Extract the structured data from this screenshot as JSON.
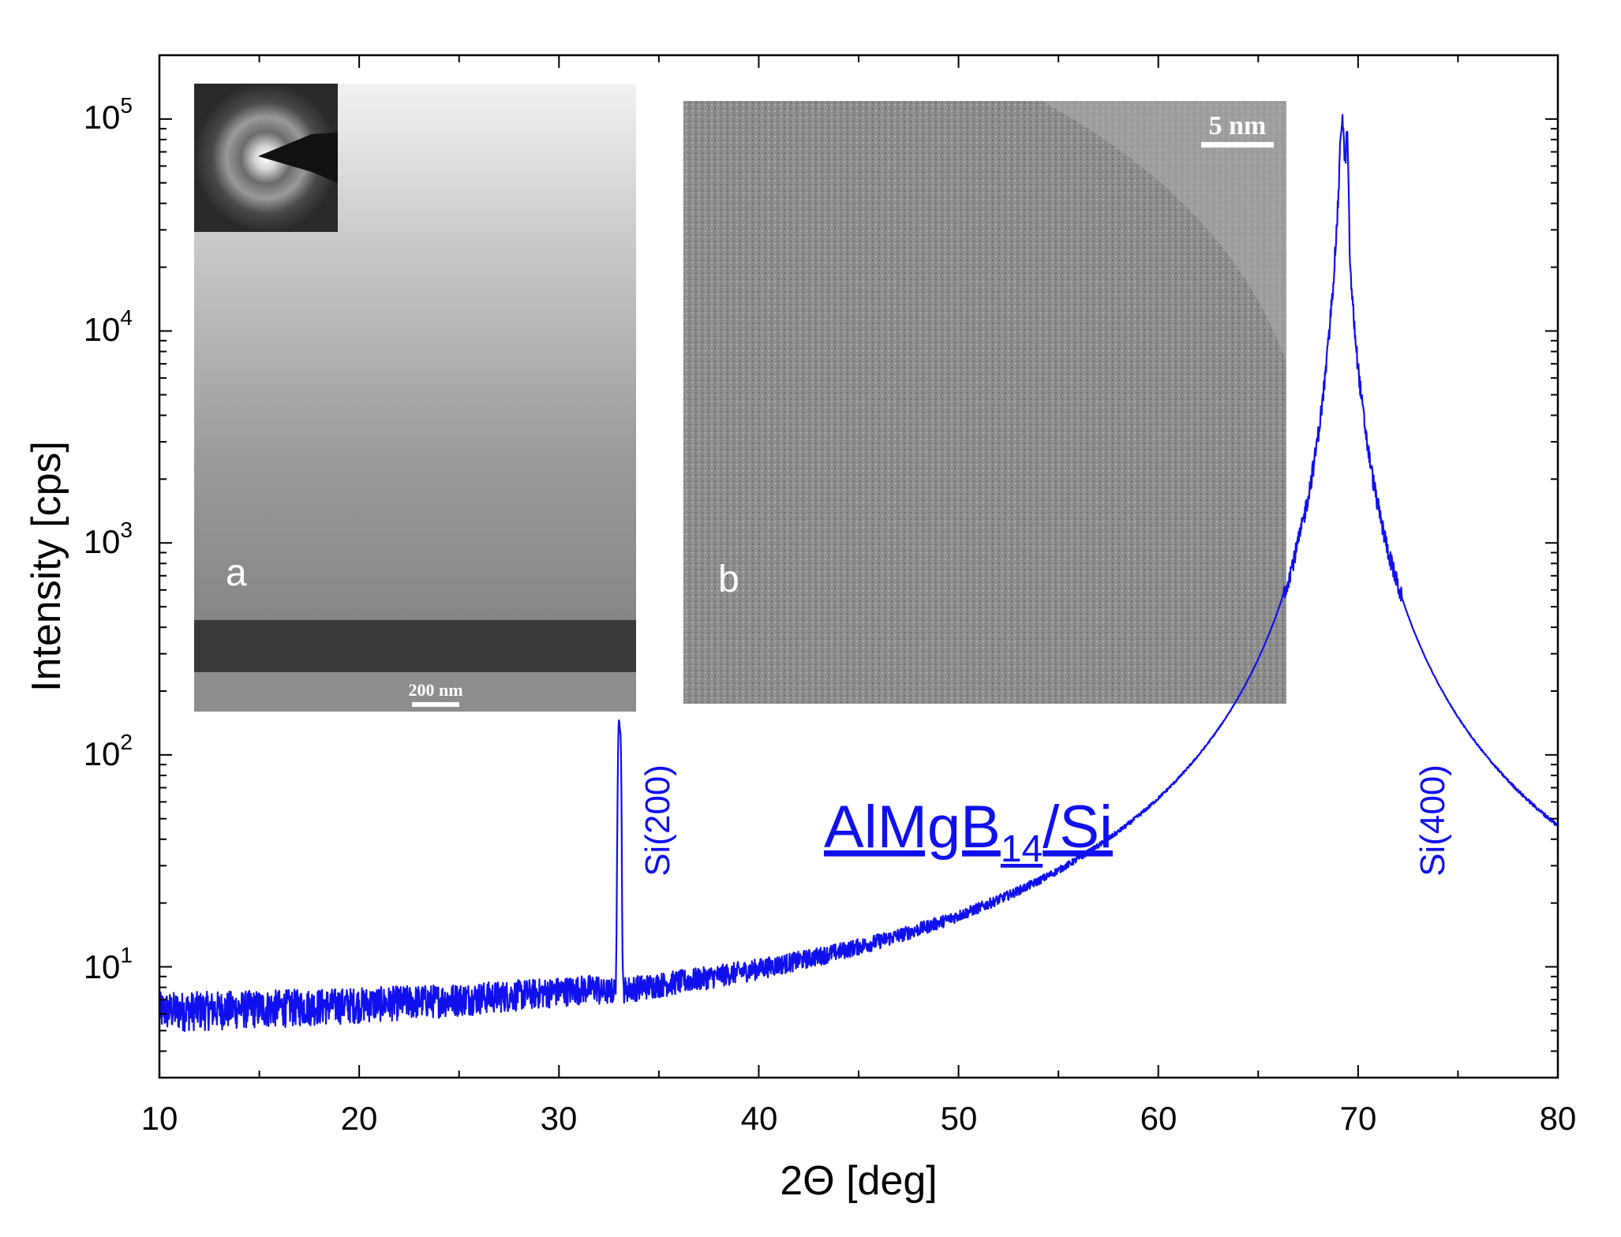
{
  "chart_data": {
    "type": "line",
    "title": "",
    "xlabel": "2Θ [deg]",
    "ylabel": "Intensity [cps]",
    "xlim": [
      10,
      80
    ],
    "ylim": [
      3,
      200000
    ],
    "yscale": "log",
    "xticks": [
      10,
      20,
      30,
      40,
      50,
      60,
      70,
      80
    ],
    "xtick_labels": [
      "10",
      "20",
      "30",
      "40",
      "50",
      "60",
      "70",
      "80"
    ],
    "yticks": [
      10,
      100,
      1000,
      10000,
      100000
    ],
    "ytick_exponents": [
      "1",
      "2",
      "3",
      "4",
      "5"
    ],
    "ytick_base": "10",
    "color": "#1010ee",
    "series": [
      {
        "name": "AlMgB14/Si",
        "background_level": 4.5,
        "peaks": [
          {
            "position": 33.0,
            "height": 140,
            "label": "Si(200)"
          },
          {
            "position": 69.2,
            "height": 100000,
            "label": "Si(400)"
          }
        ]
      }
    ],
    "annotations": {
      "compound": {
        "parts": [
          "AlMgB",
          "14",
          "/Si"
        ]
      },
      "peak_labels": [
        "Si(200)",
        "Si(400)"
      ]
    },
    "insets": [
      {
        "letter": "a",
        "scale_bar": "200 nm"
      },
      {
        "letter": "b",
        "scale_bar": "5 nm"
      }
    ]
  }
}
